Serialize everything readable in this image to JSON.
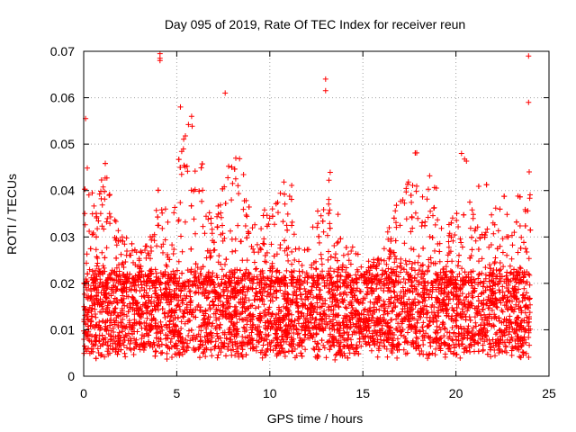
{
  "chart_data": {
    "type": "scatter",
    "title": "Day 095 of 2019, Rate Of TEC Index for receiver reun",
    "xlabel": "GPS time / hours",
    "ylabel": "ROTI / TECUs",
    "xlim": [
      0,
      25
    ],
    "ylim": [
      0,
      0.07
    ],
    "xticks": [
      0,
      5,
      10,
      15,
      20,
      25
    ],
    "xtick_labels": [
      "0",
      "5",
      "10",
      "15",
      "20",
      "25"
    ],
    "yticks": [
      0,
      0.01,
      0.02,
      0.03,
      0.04,
      0.05,
      0.06,
      0.07
    ],
    "ytick_labels": [
      "0",
      "0.01",
      "0.02",
      "0.03",
      "0.04",
      "0.05",
      "0.06",
      "0.07"
    ],
    "grid": true,
    "marker": "+",
    "series_color": "#ff0000",
    "data_extent_hours": [
      0,
      24
    ],
    "baseline_range": [
      0.005,
      0.022
    ],
    "envelope": {
      "x": [
        0,
        0.3,
        0.8,
        1.0,
        1.5,
        2.0,
        2.5,
        3.0,
        3.5,
        4.0,
        4.5,
        5.0,
        5.3,
        5.8,
        6.5,
        7.0,
        7.5,
        8.0,
        8.5,
        9.0,
        9.5,
        10.0,
        10.5,
        11.0,
        11.5,
        12.0,
        12.5,
        13.0,
        13.5,
        14.0,
        14.5,
        15.0,
        15.5,
        16.0,
        16.5,
        17.0,
        17.5,
        18.0,
        18.5,
        19.0,
        19.5,
        20.0,
        20.5,
        21.0,
        21.5,
        22.0,
        22.5,
        23.0,
        23.5,
        24.0
      ],
      "upper": [
        0.055,
        0.045,
        0.038,
        0.05,
        0.038,
        0.031,
        0.029,
        0.027,
        0.029,
        0.042,
        0.035,
        0.045,
        0.055,
        0.056,
        0.045,
        0.035,
        0.041,
        0.05,
        0.046,
        0.035,
        0.035,
        0.037,
        0.04,
        0.048,
        0.03,
        0.032,
        0.035,
        0.053,
        0.038,
        0.032,
        0.028,
        0.025,
        0.025,
        0.028,
        0.033,
        0.043,
        0.045,
        0.05,
        0.047,
        0.04,
        0.032,
        0.044,
        0.048,
        0.039,
        0.045,
        0.035,
        0.043,
        0.03,
        0.045,
        0.047
      ]
    },
    "outliers": [
      {
        "x": 4.1,
        "y": 0.0695
      },
      {
        "x": 4.1,
        "y": 0.0685
      },
      {
        "x": 4.1,
        "y": 0.068
      },
      {
        "x": 7.6,
        "y": 0.061
      },
      {
        "x": 13.0,
        "y": 0.064
      },
      {
        "x": 13.0,
        "y": 0.0615
      },
      {
        "x": 5.2,
        "y": 0.058
      },
      {
        "x": 5.8,
        "y": 0.056
      },
      {
        "x": 23.9,
        "y": 0.069
      },
      {
        "x": 23.9,
        "y": 0.059
      },
      {
        "x": 0.1,
        "y": 0.0555
      },
      {
        "x": 14.3,
        "y": 0.005
      },
      {
        "x": 13.5,
        "y": 0.0035
      },
      {
        "x": 19.9,
        "y": 0.005
      },
      {
        "x": 20.3,
        "y": 0.048
      }
    ]
  }
}
